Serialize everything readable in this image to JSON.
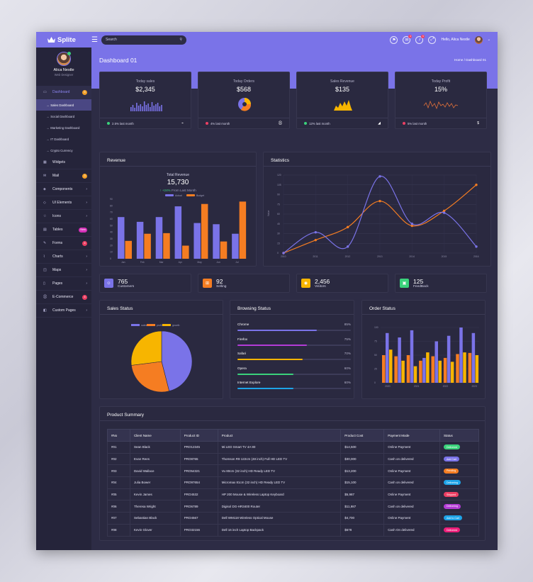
{
  "app": {
    "name": "Splite"
  },
  "topbar": {
    "search_placeholder": "Search",
    "hello": "Hello,",
    "user": "Alica Nestle",
    "mail_count": "3",
    "bell_count": "5"
  },
  "profile": {
    "name": "Alica Nestle",
    "role": "Web Designer"
  },
  "sidebar": {
    "items": [
      {
        "label": "Dashboard",
        "icon": "monitor-icon",
        "badge": "5",
        "badge_color": "#f3a026",
        "active": true
      },
      {
        "label": "Widgets",
        "icon": "grid-icon"
      },
      {
        "label": "Mail",
        "icon": "mail-icon",
        "badge": "3",
        "badge_color": "#f3a026"
      },
      {
        "label": "Components",
        "icon": "layers-icon",
        "chevron": true
      },
      {
        "label": "UI Elements",
        "icon": "cube-icon",
        "chevron": true
      },
      {
        "label": "Icons",
        "icon": "star-icon",
        "chevron": true
      },
      {
        "label": "Tables",
        "icon": "table-icon",
        "badge": "New",
        "badge_color": "#d530b8"
      },
      {
        "label": "Forms",
        "icon": "form-icon",
        "badge": "4",
        "badge_color": "#ec3f63"
      },
      {
        "label": "Charts",
        "icon": "chart-icon",
        "chevron": true
      },
      {
        "label": "Maps",
        "icon": "map-icon",
        "chevron": true
      },
      {
        "label": "Pages",
        "icon": "page-icon",
        "chevron": true
      },
      {
        "label": "E-Commerce",
        "icon": "cart-icon",
        "badge": "4",
        "badge_color": "#ec3f63"
      },
      {
        "label": "Custom Pages",
        "icon": "file-icon",
        "chevron": true
      }
    ],
    "submenu": [
      "Sales Dashboard",
      "Social Dashboard",
      "Marketing Dashboard",
      "IT Dashboard",
      "Crypto Currency"
    ]
  },
  "page": {
    "title": "Dashboard 01",
    "breadcrumb_home": "Home",
    "breadcrumb_sep": "/",
    "breadcrumb_current": "Dashboard 01"
  },
  "stats": [
    {
      "title": "Today sales",
      "value": "$2,345",
      "foot": "2.5% last month",
      "dot": "#3ad27b",
      "color": "#7a73e8"
    },
    {
      "title": "Today Orders",
      "value": "$568",
      "foot": "4% last month",
      "dot": "#ec3f63"
    },
    {
      "title": "Sales Revenue",
      "value": "$135",
      "foot": "12% last month",
      "dot": "#3ad27b",
      "color": "#f7b500"
    },
    {
      "title": "Today Profit",
      "value": "15%",
      "foot": "5% last month",
      "dot": "#ec3f63",
      "color": "#e0703a"
    }
  ],
  "revenue": {
    "title": "Revenue",
    "total_label": "Total Revenue",
    "total": "15,730",
    "change": "+24%",
    "change_text": "From Last Month",
    "legend": [
      "Actual",
      "Budget"
    ]
  },
  "statistics": {
    "title": "Statistics",
    "ylabel": "Value"
  },
  "counters": [
    {
      "value": "765",
      "label": "Customers",
      "color": "#7a73e8",
      "icon": "user-icon"
    },
    {
      "value": "92",
      "label": "Selling",
      "color": "#f57d22",
      "icon": "bag-icon"
    },
    {
      "value": "2,456",
      "label": "Visitors",
      "color": "#f7b500",
      "icon": "eye-icon"
    },
    {
      "value": "125",
      "label": "FeedBack",
      "color": "#3ad27b",
      "icon": "chat-icon"
    }
  ],
  "sales_status": {
    "title": "Sales Status",
    "legend": [
      "sales",
      "profit",
      "growth"
    ]
  },
  "browsing": {
    "title": "Browsing Status",
    "rows": [
      {
        "name": "Chrome",
        "pct": "85%",
        "value": 0.85,
        "color": "#7a73e8"
      },
      {
        "name": "Firefox",
        "pct": "75%",
        "value": 0.75,
        "color": "#b33cd6"
      },
      {
        "name": "Safari",
        "pct": "70%",
        "value": 0.7,
        "color": "#f7b500"
      },
      {
        "name": "Opera",
        "pct": "60%",
        "value": 0.6,
        "color": "#3ad27b"
      },
      {
        "name": "Internet Explore",
        "pct": "60%",
        "value": 0.6,
        "color": "#1ea4e8"
      }
    ]
  },
  "order_status": {
    "title": "Order Status"
  },
  "products": {
    "title": "Product Summary",
    "columns": [
      "#No",
      "Client Name",
      "Product ID",
      "Product",
      "Product Cost",
      "Payment Mode",
      "Status"
    ],
    "rows": [
      {
        "no": "#01",
        "client": "Sean Black",
        "pid": "PRO12345",
        "product": "Mi LED Smart TV 4A 80",
        "cost": "$14,500",
        "mode": "Online Payment",
        "status": "Delivered",
        "status_color": "#3ad27b"
      },
      {
        "no": "#02",
        "client": "Evan Rees",
        "pid": "PRO8765",
        "product": "Thomson R9 122cm (48 inch) Full HD LED TV",
        "cost": "$30,000",
        "mode": "Cash on delivered",
        "status": "Add Cart",
        "status_color": "#7a73e8"
      },
      {
        "no": "#03",
        "client": "David Wallace",
        "pid": "PRO54321",
        "product": "Vu 80cm (32 inch) HD Ready LED TV",
        "cost": "$13,200",
        "mode": "Online Payment",
        "status": "Pending",
        "status_color": "#f57d22"
      },
      {
        "no": "#04",
        "client": "Julia Bower",
        "pid": "PRO97654",
        "product": "Micromax 81cm (32 inch) HD Ready LED TV",
        "cost": "$15,100",
        "mode": "Cash on delivered",
        "status": "Delivering",
        "status_color": "#1ea4e8"
      },
      {
        "no": "#05",
        "client": "Kevin James",
        "pid": "PRO4532",
        "product": "HP 200 Mouse &amp; Wireless Laptop Keyboard",
        "cost": "$5,987",
        "mode": "Online Payment",
        "status": "Shipped",
        "status_color": "#ec3f63"
      },
      {
        "no": "#06",
        "client": "Theresa Wright",
        "pid": "PRO6789",
        "product": "Digisol DG-HR3400 Router",
        "cost": "$11,987",
        "mode": "Cash on delivered",
        "status": "Delivering",
        "status_color": "#b33cd6"
      },
      {
        "no": "#07",
        "client": "Sebastian Black",
        "pid": "PRO4567",
        "product": "Dell WM118 Wireless Optical Mouse",
        "cost": "$4,700",
        "mode": "Online Payment",
        "status": "Add to Cart",
        "status_color": "#1ea4e8"
      },
      {
        "no": "#08",
        "client": "Kevin Glover",
        "pid": "PRO32156",
        "product": "Dell 16 inch Laptop Backpack",
        "cost": "$678",
        "mode": "Cash On delivered",
        "status": "Delivered",
        "status_color": "#ec1e79"
      }
    ]
  },
  "chart_data": [
    {
      "type": "bar",
      "categories": [
        "Jan",
        "Feb",
        "Mar",
        "Apr",
        "May",
        "Jun",
        "Jul"
      ],
      "series": [
        {
          "name": "Actual",
          "values": [
            70,
            62,
            70,
            88,
            60,
            58,
            42
          ],
          "color": "#7a73e8"
        },
        {
          "name": "Budget",
          "values": [
            30,
            42,
            43,
            22,
            92,
            29,
            96
          ],
          "color": "#f57d22"
        }
      ],
      "yticks": [
        "90",
        "80",
        "70",
        "60",
        "50",
        "40",
        "30",
        "20",
        "10",
        "0"
      ],
      "ylim": [
        0,
        100
      ]
    },
    {
      "type": "line",
      "x": [
        "2010",
        "2011",
        "2012",
        "2013",
        "2014",
        "2015",
        "2016"
      ],
      "yticks": [
        "120",
        "105",
        "90",
        "75",
        "60",
        "45",
        "30",
        "15",
        "0"
      ],
      "ylim": [
        0,
        120
      ],
      "series": [
        {
          "values": [
            0,
            20,
            40,
            80,
            42,
            65,
            105
          ],
          "color": "#f57d22"
        },
        {
          "values": [
            0,
            32,
            10,
            118,
            45,
            62,
            10
          ],
          "color": "#7a73e8"
        }
      ]
    },
    {
      "type": "pie",
      "labels": [
        "sales",
        "profit",
        "growth"
      ],
      "values": [
        46,
        27,
        27
      ],
      "colors": [
        "#7a73e8",
        "#f57d22",
        "#f7b500"
      ]
    },
    {
      "type": "bar",
      "x": [
        "2020",
        "2021",
        "2022",
        "2023",
        "2024",
        "2025",
        "2026",
        "2027"
      ],
      "xticks": [
        "2020",
        "2021",
        "2022",
        "2023"
      ],
      "yticks": [
        "100",
        "75",
        "50",
        "25",
        "0"
      ],
      "ylim": [
        0,
        100
      ],
      "series": [
        {
          "values": [
            50,
            48,
            50,
            40,
            48,
            45,
            52,
            54
          ],
          "color": "#f57d22"
        },
        {
          "values": [
            90,
            82,
            95,
            45,
            75,
            85,
            100,
            90
          ],
          "color": "#7a73e8"
        },
        {
          "values": [
            60,
            40,
            30,
            55,
            40,
            38,
            55,
            50
          ],
          "color": "#f7b500"
        }
      ]
    }
  ]
}
